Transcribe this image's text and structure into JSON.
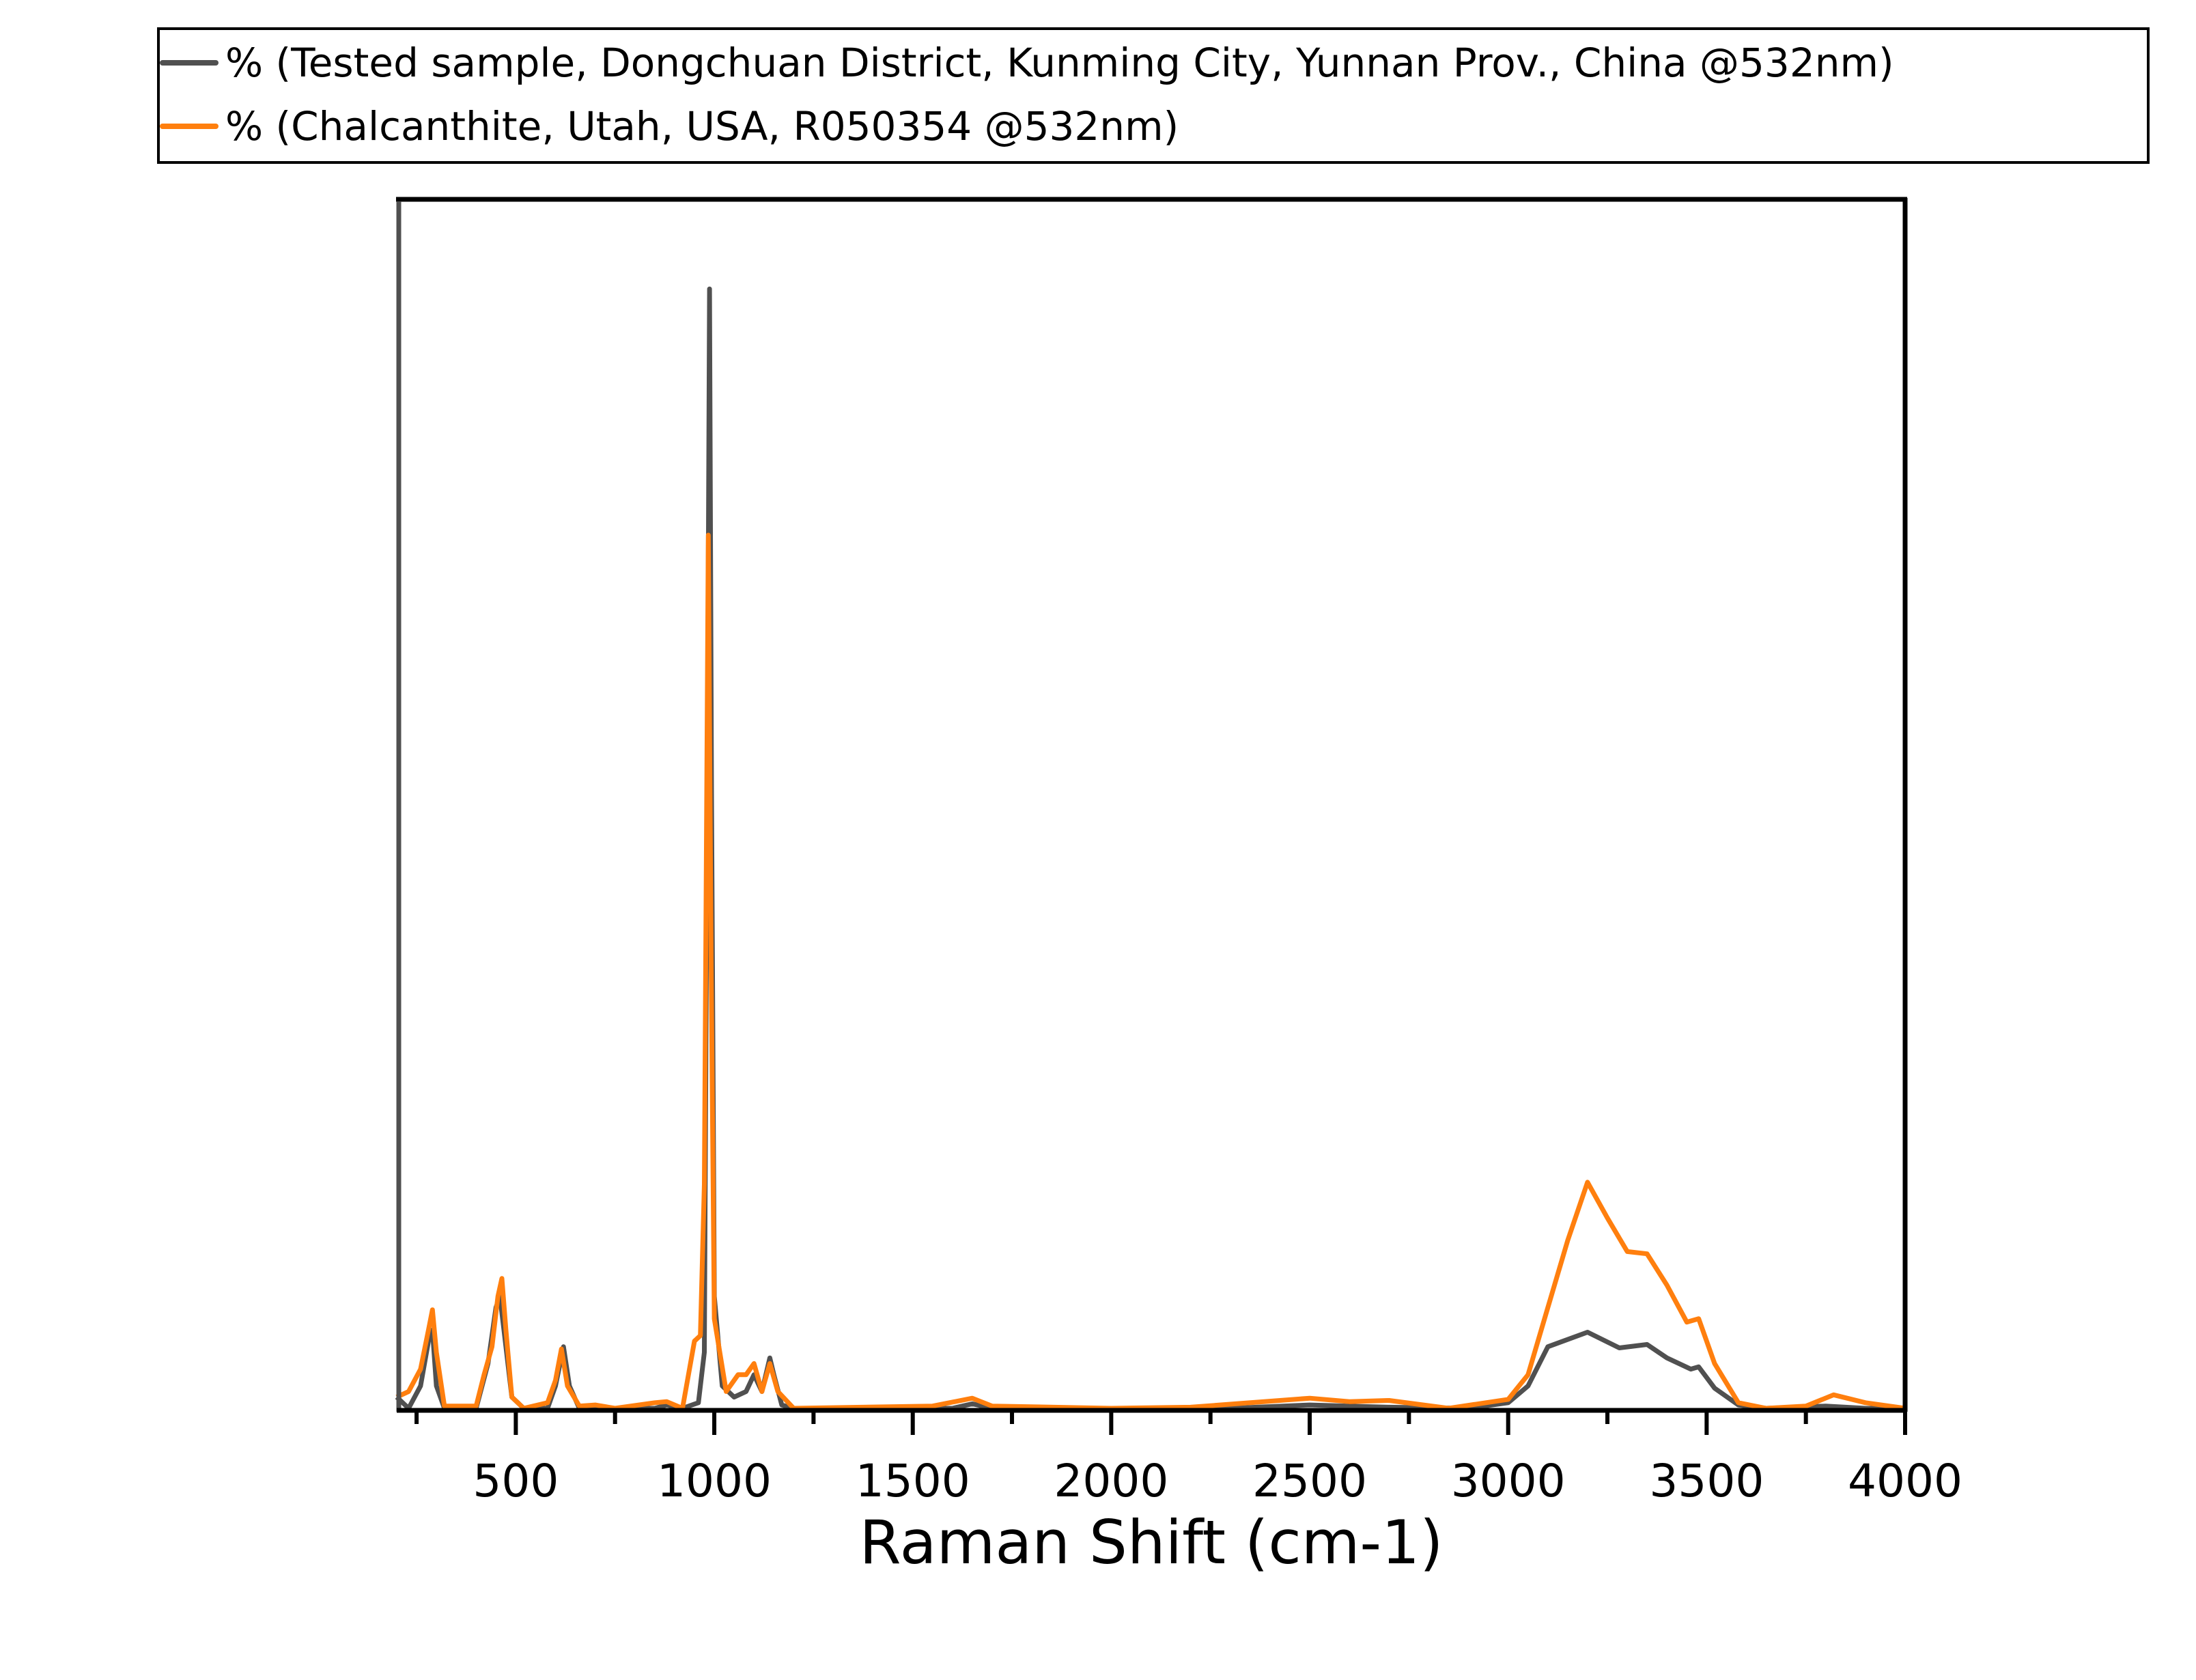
{
  "chart_data": {
    "type": "line",
    "title": "",
    "xlabel": "Raman Shift (cm-1)",
    "ylabel": "",
    "xlim": [
      200,
      4000
    ],
    "ylim": [
      0,
      1.08
    ],
    "x_ticks": [
      500,
      1000,
      1500,
      2000,
      2500,
      3000,
      3500,
      4000
    ],
    "x_minor_ticks": [
      250,
      750,
      1250,
      1750,
      2250,
      2750,
      3250,
      3750
    ],
    "y_ticks_visible": false,
    "grid": false,
    "legend_position": "top, above plot",
    "series": [
      {
        "name": "% (Tested sample, Dongchuan District, Kunming City, Yunnan Prov., China @532nm)",
        "color": "#505050",
        "points": [
          [
            200,
            0.01
          ],
          [
            230,
            0.0
          ],
          [
            260,
            0.02
          ],
          [
            280,
            0.06
          ],
          [
            290,
            0.07
          ],
          [
            300,
            0.02
          ],
          [
            320,
            0.0
          ],
          [
            400,
            0.0
          ],
          [
            430,
            0.04
          ],
          [
            450,
            0.09
          ],
          [
            460,
            0.1
          ],
          [
            470,
            0.07
          ],
          [
            490,
            0.01
          ],
          [
            520,
            0.0
          ],
          [
            580,
            0.0
          ],
          [
            600,
            0.02
          ],
          [
            620,
            0.055
          ],
          [
            635,
            0.02
          ],
          [
            660,
            0.0
          ],
          [
            850,
            0.0
          ],
          [
            880,
            0.003
          ],
          [
            920,
            0.0
          ],
          [
            960,
            0.005
          ],
          [
            975,
            0.05
          ],
          [
            983,
            0.6
          ],
          [
            988,
            1.0
          ],
          [
            993,
            0.55
          ],
          [
            1000,
            0.1
          ],
          [
            1020,
            0.02
          ],
          [
            1050,
            0.01
          ],
          [
            1080,
            0.015
          ],
          [
            1100,
            0.03
          ],
          [
            1120,
            0.015
          ],
          [
            1140,
            0.045
          ],
          [
            1150,
            0.03
          ],
          [
            1170,
            0.003
          ],
          [
            1200,
            0.0
          ],
          [
            1600,
            0.0
          ],
          [
            1650,
            0.004
          ],
          [
            1700,
            0.0
          ],
          [
            2300,
            0.0
          ],
          [
            2500,
            0.003
          ],
          [
            2700,
            0.001
          ],
          [
            2900,
            0.0
          ],
          [
            3000,
            0.005
          ],
          [
            3050,
            0.02
          ],
          [
            3100,
            0.055
          ],
          [
            3200,
            0.068
          ],
          [
            3280,
            0.054
          ],
          [
            3350,
            0.057
          ],
          [
            3400,
            0.045
          ],
          [
            3460,
            0.035
          ],
          [
            3480,
            0.037
          ],
          [
            3520,
            0.018
          ],
          [
            3580,
            0.003
          ],
          [
            3650,
            0.0
          ],
          [
            3800,
            0.002
          ],
          [
            3900,
            0.0
          ],
          [
            4000,
            0.0
          ]
        ]
      },
      {
        "name": "% (Chalcanthite, Utah, USA, R050354 @532nm)",
        "color": "#ff7f0e",
        "points": [
          [
            200,
            0.01
          ],
          [
            230,
            0.015
          ],
          [
            260,
            0.035
          ],
          [
            280,
            0.07
          ],
          [
            290,
            0.088
          ],
          [
            300,
            0.05
          ],
          [
            320,
            0.002
          ],
          [
            400,
            0.002
          ],
          [
            420,
            0.03
          ],
          [
            440,
            0.055
          ],
          [
            455,
            0.1
          ],
          [
            465,
            0.116
          ],
          [
            475,
            0.07
          ],
          [
            490,
            0.01
          ],
          [
            520,
            0.0
          ],
          [
            580,
            0.005
          ],
          [
            600,
            0.025
          ],
          [
            615,
            0.053
          ],
          [
            630,
            0.02
          ],
          [
            660,
            0.002
          ],
          [
            700,
            0.003
          ],
          [
            750,
            0.0
          ],
          [
            850,
            0.005
          ],
          [
            880,
            0.006
          ],
          [
            920,
            0.0
          ],
          [
            950,
            0.06
          ],
          [
            965,
            0.065
          ],
          [
            975,
            0.2
          ],
          [
            985,
            0.78
          ],
          [
            992,
            0.4
          ],
          [
            1000,
            0.08
          ],
          [
            1030,
            0.015
          ],
          [
            1060,
            0.03
          ],
          [
            1080,
            0.03
          ],
          [
            1100,
            0.04
          ],
          [
            1120,
            0.015
          ],
          [
            1140,
            0.04
          ],
          [
            1160,
            0.015
          ],
          [
            1200,
            0.0
          ],
          [
            1550,
            0.002
          ],
          [
            1650,
            0.009
          ],
          [
            1700,
            0.002
          ],
          [
            2000,
            0.0
          ],
          [
            2200,
            0.001
          ],
          [
            2500,
            0.009
          ],
          [
            2600,
            0.006
          ],
          [
            2700,
            0.007
          ],
          [
            2850,
            0.0
          ],
          [
            3000,
            0.008
          ],
          [
            3050,
            0.03
          ],
          [
            3100,
            0.09
          ],
          [
            3150,
            0.15
          ],
          [
            3200,
            0.202
          ],
          [
            3250,
            0.17
          ],
          [
            3300,
            0.14
          ],
          [
            3350,
            0.138
          ],
          [
            3400,
            0.11
          ],
          [
            3450,
            0.077
          ],
          [
            3480,
            0.08
          ],
          [
            3520,
            0.04
          ],
          [
            3580,
            0.005
          ],
          [
            3650,
            0.0
          ],
          [
            3750,
            0.002
          ],
          [
            3820,
            0.012
          ],
          [
            3900,
            0.005
          ],
          [
            4000,
            0.0
          ]
        ]
      }
    ]
  },
  "legend": {
    "items": [
      {
        "label": "% (Tested sample, Dongchuan District, Kunming City, Yunnan Prov., China @532nm)",
        "color": "#505050"
      },
      {
        "label": "% (Chalcanthite, Utah, USA, R050354 @532nm)",
        "color": "#ff7f0e"
      }
    ]
  },
  "axes": {
    "x_title": "Raman Shift (cm-1)",
    "x_tick_labels": [
      "500",
      "1000",
      "1500",
      "2000",
      "2500",
      "3000",
      "3500",
      "4000"
    ]
  }
}
